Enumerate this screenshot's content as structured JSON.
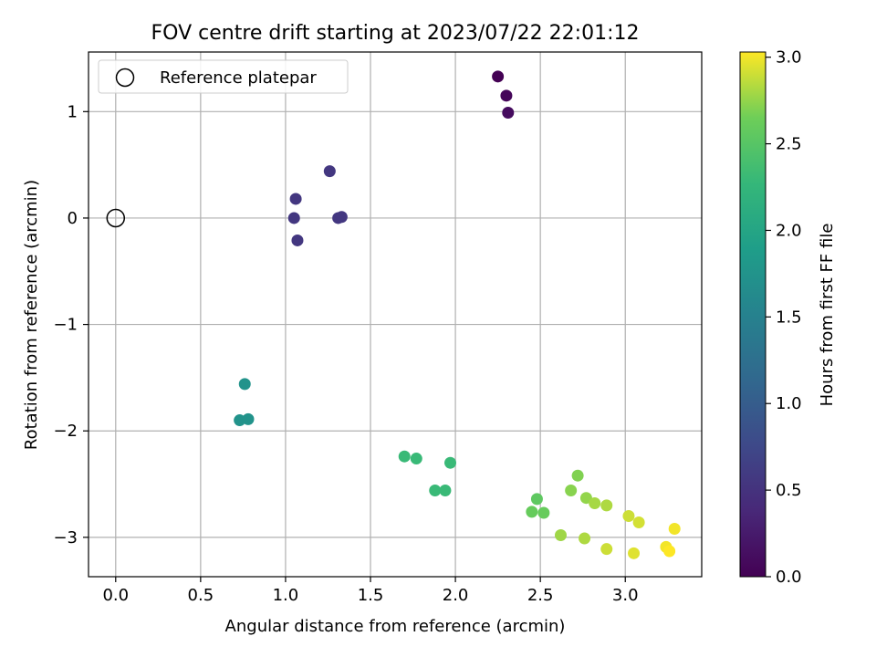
{
  "chart_data": {
    "type": "scatter",
    "title": "FOV centre drift starting at 2023/07/22 22:01:12",
    "xlabel": "Angular distance from reference (arcmin)",
    "ylabel": "Rotation from reference (arcmin)",
    "xlim": [
      -0.16,
      3.45
    ],
    "ylim": [
      -3.37,
      1.56
    ],
    "xticks": [
      0.0,
      0.5,
      1.0,
      1.5,
      2.0,
      2.5,
      3.0
    ],
    "xtick_labels": [
      "0.0",
      "0.5",
      "1.0",
      "1.5",
      "2.0",
      "2.5",
      "3.0"
    ],
    "yticks": [
      -3,
      -2,
      -1,
      0,
      1
    ],
    "ytick_labels": [
      "−3",
      "−2",
      "−1",
      "0",
      "1"
    ],
    "grid": true,
    "legend": {
      "placement": "top-left",
      "entries": [
        "Reference platepar"
      ]
    },
    "reference": {
      "name": "Reference platepar",
      "x": 0.0,
      "y": 0.0
    },
    "colorbar": {
      "label": "Hours from first FF file",
      "colormap": "viridis",
      "range": [
        0.0,
        3.03
      ],
      "ticks": [
        0.0,
        0.5,
        1.0,
        1.5,
        2.0,
        2.5,
        3.0
      ],
      "tick_labels": [
        "0.0",
        "0.5",
        "1.0",
        "1.5",
        "2.0",
        "2.5",
        "3.0"
      ]
    },
    "points": [
      {
        "x": 2.25,
        "y": 1.33,
        "c": 0.0
      },
      {
        "x": 2.3,
        "y": 1.15,
        "c": 0.05
      },
      {
        "x": 2.31,
        "y": 0.99,
        "c": 0.1
      },
      {
        "x": 1.26,
        "y": 0.44,
        "c": 0.55
      },
      {
        "x": 1.06,
        "y": 0.18,
        "c": 0.55
      },
      {
        "x": 1.05,
        "y": 0.0,
        "c": 0.55
      },
      {
        "x": 1.31,
        "y": 0.0,
        "c": 0.55
      },
      {
        "x": 1.33,
        "y": 0.01,
        "c": 0.55
      },
      {
        "x": 1.07,
        "y": -0.21,
        "c": 0.55
      },
      {
        "x": 0.76,
        "y": -1.56,
        "c": 1.75
      },
      {
        "x": 0.73,
        "y": -1.9,
        "c": 1.75
      },
      {
        "x": 0.78,
        "y": -1.89,
        "c": 1.75
      },
      {
        "x": 1.7,
        "y": -2.24,
        "c": 2.3
      },
      {
        "x": 1.77,
        "y": -2.26,
        "c": 2.3
      },
      {
        "x": 1.97,
        "y": -2.3,
        "c": 2.3
      },
      {
        "x": 1.88,
        "y": -2.56,
        "c": 2.3
      },
      {
        "x": 1.94,
        "y": -2.56,
        "c": 2.3
      },
      {
        "x": 2.48,
        "y": -2.64,
        "c": 2.55
      },
      {
        "x": 2.45,
        "y": -2.76,
        "c": 2.6
      },
      {
        "x": 2.52,
        "y": -2.77,
        "c": 2.6
      },
      {
        "x": 2.72,
        "y": -2.42,
        "c": 2.7
      },
      {
        "x": 2.68,
        "y": -2.56,
        "c": 2.72
      },
      {
        "x": 2.77,
        "y": -2.63,
        "c": 2.75
      },
      {
        "x": 2.82,
        "y": -2.68,
        "c": 2.8
      },
      {
        "x": 2.89,
        "y": -2.7,
        "c": 2.82
      },
      {
        "x": 2.62,
        "y": -2.98,
        "c": 2.78
      },
      {
        "x": 2.76,
        "y": -3.01,
        "c": 2.82
      },
      {
        "x": 3.02,
        "y": -2.8,
        "c": 2.9
      },
      {
        "x": 3.08,
        "y": -2.86,
        "c": 2.92
      },
      {
        "x": 2.89,
        "y": -3.11,
        "c": 2.9
      },
      {
        "x": 3.05,
        "y": -3.15,
        "c": 2.95
      },
      {
        "x": 3.29,
        "y": -2.92,
        "c": 3.0
      },
      {
        "x": 3.24,
        "y": -3.09,
        "c": 3.0
      },
      {
        "x": 3.26,
        "y": -3.13,
        "c": 3.03
      }
    ]
  }
}
